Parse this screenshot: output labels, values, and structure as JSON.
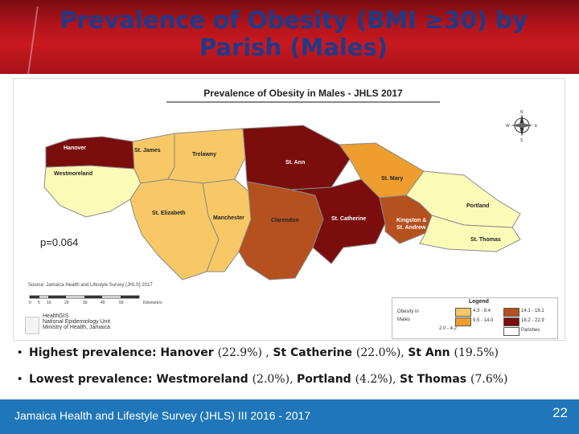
{
  "slide": {
    "title": "Prevalence of Obesity (BMI ≥30) by Parish (Males)"
  },
  "map": {
    "title": "Prevalence of Obesity in Males - JHLS 2017",
    "p_value": "p=0.064",
    "source": "Source: Jamaica Health and Lifestyle Survey (JHLS) 2017",
    "scale_ticks": [
      "0",
      "5",
      "10",
      "20",
      "30",
      "40",
      "50"
    ],
    "scale_unit": "Kilometers",
    "org_lines": [
      "HealthGIS",
      "National Epidemiology Unit",
      "Ministry of Health, Jamaica"
    ],
    "compass": [
      "N",
      "S",
      "W",
      "E"
    ],
    "parishes": {
      "hanover": "Hanover",
      "st_james": "St. James",
      "trelawny": "Trelawny",
      "st_ann": "St. Ann",
      "westmoreland": "Westmoreland",
      "st_mary": "St. Mary",
      "portland": "Portland",
      "st_elizabeth": "St. Elizabeth",
      "manchester": "Manchester",
      "clarendon": "Clarendon",
      "st_catherine": "St. Catherine",
      "kingston_line1": "Kingston &",
      "kingston_line2": "St. Andrew",
      "st_thomas": "St. Thomas"
    },
    "legend": {
      "title": "Legend",
      "measure_line1": "Obesity in",
      "measure_line2": "Males",
      "classes": [
        {
          "label": "2.0 - 4.2",
          "color": "#fbfbb8"
        },
        {
          "label": "4.3 - 9.4",
          "color": "#f7c865"
        },
        {
          "label": "9.5 - 14.0",
          "color": "#ee9e2e"
        },
        {
          "label": "14.1 - 18.1",
          "color": "#b5501f"
        },
        {
          "label": "18.2 - 22.9",
          "color": "#7b0d0d"
        },
        {
          "label": "Parishes",
          "color": "#ffffff"
        }
      ]
    }
  },
  "bullets": [
    {
      "lead": "Highest prevalence: ",
      "rest": "Hanover (22.9%) , St Catherine (22.0%), St Ann (19.5%)",
      "rest_parts": [
        {
          "t": "Hanover ",
          "b": true
        },
        {
          "t": "(22.9%) , ",
          "b": false
        },
        {
          "t": "St Catherine ",
          "b": true
        },
        {
          "t": "(22.0%), ",
          "b": false
        },
        {
          "t": "St Ann ",
          "b": true
        },
        {
          "t": "(19.5%)",
          "b": false
        }
      ]
    },
    {
      "lead": "Lowest prevalence: ",
      "rest": "Westmoreland (2.0%), Portland (4.2%), St Thomas (7.6%)",
      "rest_parts": [
        {
          "t": "Westmoreland ",
          "b": true
        },
        {
          "t": "(2.0%), ",
          "b": false
        },
        {
          "t": "Portland ",
          "b": true
        },
        {
          "t": "(4.2%), ",
          "b": false
        },
        {
          "t": "St Thomas ",
          "b": true
        },
        {
          "t": "(7.6%)",
          "b": false
        }
      ]
    }
  ],
  "footer": {
    "text": "Jamaica Health and Lifestyle Survey (JHLS) III 2016 - 2017",
    "page_number": "22"
  },
  "colors": {
    "title_text": "#1f3a8a",
    "title_bar": "#b3141b",
    "footer_bar": "#1f76b8"
  }
}
